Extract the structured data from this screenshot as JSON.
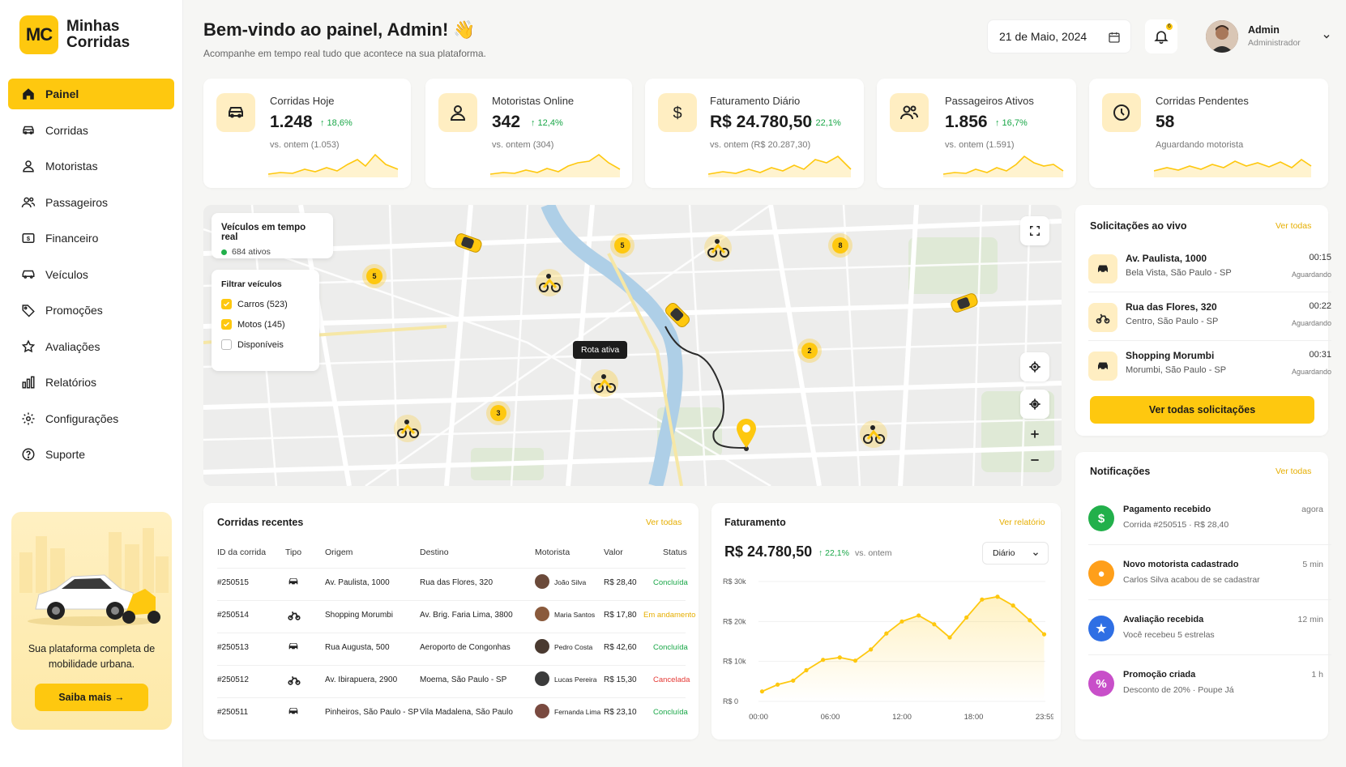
{
  "app": {
    "logo_badge": "MC",
    "logo_text": "Minhas Corridas"
  },
  "nav": [
    {
      "label": "Painel",
      "icon": "home-icon"
    },
    {
      "label": "Corridas",
      "icon": "car-icon"
    },
    {
      "label": "Motoristas",
      "icon": "driver-icon"
    },
    {
      "label": "Passageiros",
      "icon": "users-icon"
    },
    {
      "label": "Financeiro",
      "icon": "money-icon"
    },
    {
      "label": "Veículos",
      "icon": "vehicle-icon"
    },
    {
      "label": "Promoções",
      "icon": "tag-icon"
    },
    {
      "label": "Avaliações",
      "icon": "star-icon"
    },
    {
      "label": "Relatórios",
      "icon": "bar-chart-icon"
    },
    {
      "label": "Configurações",
      "icon": "gear-icon"
    },
    {
      "label": "Suporte",
      "icon": "help-icon"
    }
  ],
  "promo": {
    "text": "Sua plataforma completa de mobilidade urbana.",
    "button": "Saiba mais →"
  },
  "header": {
    "title": "Bem-vindo ao painel, Admin! 👋",
    "subtitle": "Acompanhe em tempo real tudo que acontece na sua plataforma.",
    "date": "21 de Maio, 2024",
    "notification_count": "6",
    "user_name": "Admin",
    "user_role": "Administrador"
  },
  "stats": [
    {
      "label": "Corridas Hoje",
      "value": "1.248",
      "change": "↑ 18,6%",
      "compare": "vs. ontem (1.053)",
      "icon": "car-icon"
    },
    {
      "label": "Motoristas Online",
      "value": "342",
      "change": "↑ 12,4%",
      "compare": "vs. ontem (304)",
      "icon": "driver-icon"
    },
    {
      "label": "Faturamento Diário",
      "value": "R$ 24.780,50",
      "change": "↑ 22,1%",
      "compare": "vs. ontem (R$ 20.287,30)",
      "icon": "dollar-icon"
    },
    {
      "label": "Passageiros Ativos",
      "value": "1.856",
      "change": "↑ 16,7%",
      "compare": "vs. ontem (1.591)",
      "icon": "users-icon"
    },
    {
      "label": "Corridas Pendentes",
      "value": "58",
      "change": "",
      "compare": "Aguardando motorista",
      "icon": "clock-icon"
    }
  ],
  "map": {
    "realtime_title": "Veículos em tempo real",
    "active": "684 ativos",
    "filter_title": "Filtrar veículos",
    "filters": [
      {
        "label": "Carros (523)",
        "checked": true
      },
      {
        "label": "Motos (145)",
        "checked": true
      },
      {
        "label": "Disponíveis",
        "checked": false
      }
    ],
    "tooltip": "Rota ativa",
    "clusters": [
      "5",
      "5",
      "8",
      "2",
      "3"
    ]
  },
  "requests": {
    "title": "Solicitações ao vivo",
    "link": "Ver todas",
    "items": [
      {
        "title": "Av. Paulista, 1000",
        "sub": "Bela Vista, São Paulo - SP",
        "time": "00:15",
        "status": "Aguardando",
        "icon": "car-icon"
      },
      {
        "title": "Rua das Flores, 320",
        "sub": "Centro, São Paulo - SP",
        "time": "00:22",
        "status": "Aguardando",
        "icon": "motorcycle-icon"
      },
      {
        "title": "Shopping Morumbi",
        "sub": "Morumbi, São Paulo - SP",
        "time": "00:31",
        "status": "Aguardando",
        "icon": "car-icon"
      }
    ],
    "button": "Ver todas solicitações"
  },
  "rides": {
    "title": "Corridas recentes",
    "link": "Ver todas",
    "headers": [
      "ID da corrida",
      "Tipo",
      "Origem",
      "Destino",
      "Motorista",
      "Valor",
      "Status"
    ],
    "rows": [
      {
        "id": "#250515",
        "type": "car",
        "origin": "Av. Paulista, 1000",
        "dest": "Rua das Flores, 320",
        "driver": "João Silva",
        "value": "R$ 28,40",
        "status": "Concluída",
        "status_color": "#1aa748"
      },
      {
        "id": "#250514",
        "type": "moto",
        "origin": "Shopping Morumbi",
        "dest": "Av. Brig. Faria Lima, 3800",
        "driver": "Maria Santos",
        "value": "R$ 17,80",
        "status": "Em andamento",
        "status_color": "#e6ae00"
      },
      {
        "id": "#250513",
        "type": "car",
        "origin": "Rua Augusta, 500",
        "dest": "Aeroporto de Congonhas",
        "driver": "Pedro Costa",
        "value": "R$ 42,60",
        "status": "Concluída",
        "status_color": "#1aa748"
      },
      {
        "id": "#250512",
        "type": "moto",
        "origin": "Av. Ibirapuera, 2900",
        "dest": "Moema, São Paulo - SP",
        "driver": "Lucas Pereira",
        "value": "R$ 15,30",
        "status": "Cancelada",
        "status_color": "#e53935"
      },
      {
        "id": "#250511",
        "type": "car",
        "origin": "Pinheiros, São Paulo - SP",
        "dest": "Vila Madalena, São Paulo",
        "driver": "Fernanda Lima",
        "value": "R$ 23,10",
        "status": "Concluída",
        "status_color": "#1aa748"
      }
    ]
  },
  "revenue": {
    "title": "Faturamento",
    "link": "Ver relatório",
    "value": "R$ 24.780,50",
    "change": "↑ 22,1%",
    "compare": "vs. ontem",
    "period": "Diário"
  },
  "chart_data": {
    "type": "area",
    "title": "",
    "xlabel": "",
    "ylabel": "",
    "x_ticks": [
      "00:00",
      "06:00",
      "12:00",
      "18:00",
      "23:59"
    ],
    "y_ticks": [
      "R$ 0",
      "R$ 10k",
      "R$ 20k",
      "R$ 30k"
    ],
    "ylim": [
      0,
      30000
    ],
    "x_hours": [
      0.3,
      1.6,
      2.9,
      4.0,
      5.4,
      6.8,
      8.1,
      9.4,
      10.7,
      12.0,
      13.4,
      14.7,
      16.0,
      17.4,
      18.7,
      20.0,
      21.3,
      22.7,
      23.9
    ],
    "values": [
      2500,
      4200,
      5200,
      7800,
      10400,
      11000,
      10200,
      13000,
      17000,
      20000,
      21500,
      19300,
      16000,
      21000,
      25500,
      26200,
      24000,
      20300,
      16800
    ],
    "color": "#fec80f"
  },
  "notifications": {
    "title": "Notificações",
    "link": "Ver todas",
    "items": [
      {
        "title": "Pagamento recebido",
        "sub": "Corrida #250515 · R$ 28,40",
        "time": "agora",
        "color": "#22b04b",
        "icon": "dollar-icon",
        "glyph": "$"
      },
      {
        "title": "Novo motorista cadastrado",
        "sub": "Carlos Silva acabou de se cadastrar",
        "time": "5 min",
        "color": "#ff9f1a",
        "icon": "user-icon",
        "glyph": "●"
      },
      {
        "title": "Avaliação recebida",
        "sub": "Você recebeu 5 estrelas",
        "time": "12 min",
        "color": "#2f6fe4",
        "icon": "star-icon",
        "glyph": "★"
      },
      {
        "title": "Promoção criada",
        "sub": "Desconto de 20% · Poupe Já",
        "time": "1 h",
        "color": "#c84fc9",
        "icon": "tag-icon",
        "glyph": "%"
      }
    ]
  }
}
